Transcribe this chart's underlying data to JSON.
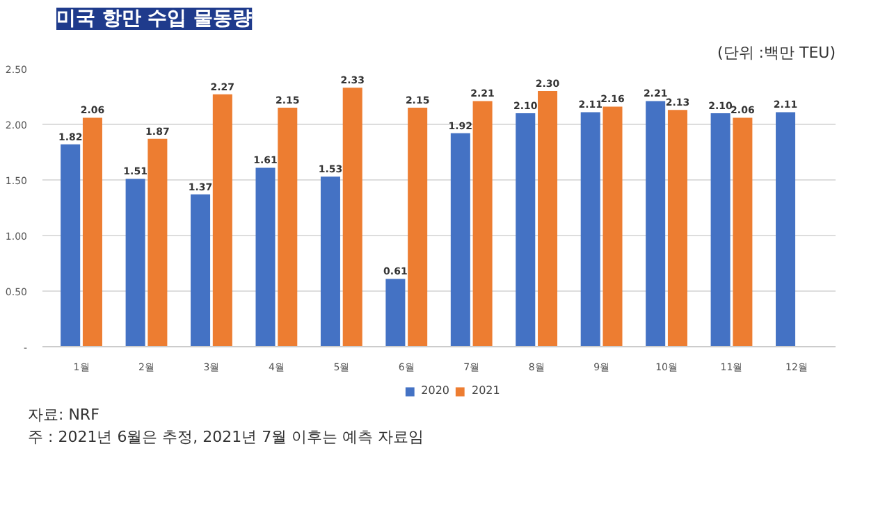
{
  "chart_data": {
    "type": "bar",
    "title": "미국 항만 수입 물동량",
    "subtitle": "(단위 :백만 TEU)",
    "categories": [
      "1월",
      "2월",
      "3월",
      "4월",
      "5월",
      "6월",
      "7월",
      "8월",
      "9월",
      "10월",
      "11월",
      "12월"
    ],
    "series": [
      {
        "name": "2020",
        "color": "#4472c4",
        "values": [
          1.82,
          1.51,
          1.37,
          1.61,
          1.53,
          0.61,
          1.92,
          2.1,
          2.11,
          2.21,
          2.1,
          2.11
        ],
        "value_labels": [
          "1.82",
          "1.51",
          "1.37",
          "1.61",
          "1.53",
          "0.61",
          "1.92",
          "2.10",
          "2.11",
          "2.21",
          "2.10",
          "2.11"
        ]
      },
      {
        "name": "2021",
        "color": "#ed7d31",
        "values": [
          2.06,
          1.87,
          2.27,
          2.15,
          2.33,
          2.15,
          2.21,
          2.3,
          2.16,
          2.13,
          2.06,
          null
        ],
        "value_labels": [
          "2.06",
          "1.87",
          "2.27",
          "2.15",
          "2.33",
          "2.15",
          "2.21",
          "2.30",
          "2.16",
          "2.13",
          "2.06",
          null
        ]
      }
    ],
    "ylim": [
      0,
      2.5
    ],
    "yticks": [
      {
        "value": 0,
        "label": "-"
      },
      {
        "value": 0.5,
        "label": "0.50"
      },
      {
        "value": 1,
        "label": "1.00"
      },
      {
        "value": 1.5,
        "label": "1.50"
      },
      {
        "value": 2,
        "label": "2.00"
      },
      {
        "value": 2.5,
        "label": "2.50"
      }
    ],
    "grid": "y",
    "legend": "bottom",
    "annotations": [
      "자료: NRF",
      "주 : 2021년 6월은 추정, 2021년 7월 이후는 예측 자료임"
    ]
  }
}
